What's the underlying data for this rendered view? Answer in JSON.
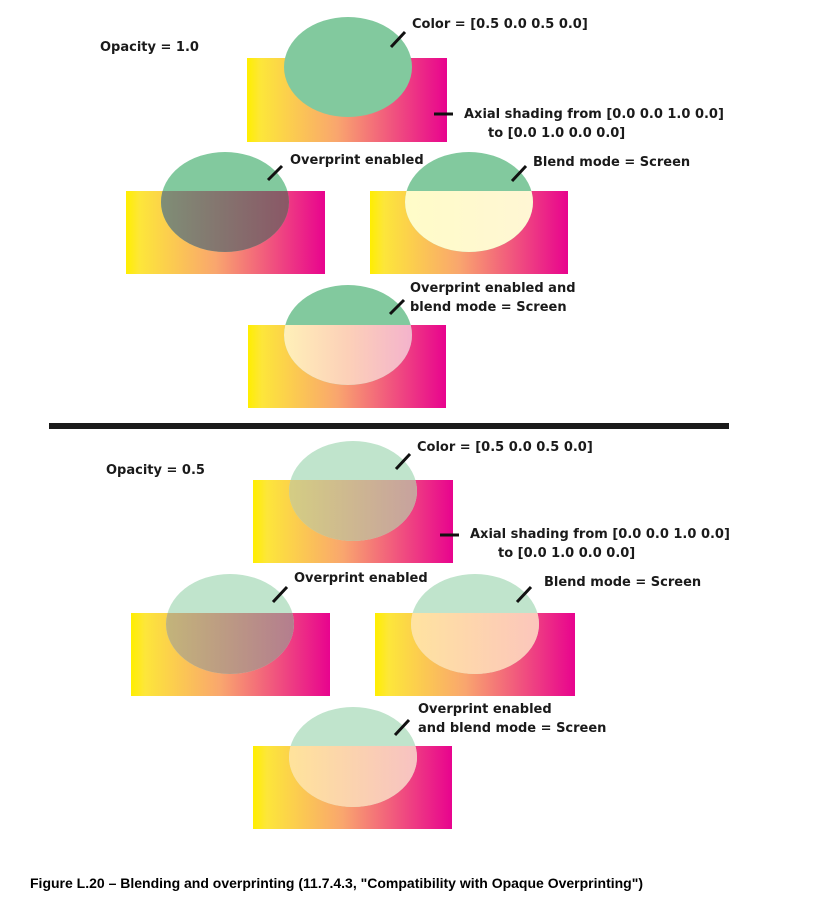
{
  "top_panel": {
    "opacity_label": "Opacity = 1.0",
    "color_label": "Color = [0.5  0.0  0.5  0.0]",
    "axial_line1": "Axial shading from [0.0  0.0  1.0  0.0]",
    "axial_line2": "to [0.0  1.0  0.0  0.0]",
    "overprint_label": "Overprint enabled",
    "blend_label": "Blend mode = Screen",
    "combo_line1": "Overprint enabled and",
    "combo_line2": "blend mode = Screen"
  },
  "bottom_panel": {
    "opacity_label": "Opacity = 0.5",
    "color_label": "Color = [0.5  0.0  0.5  0.0]",
    "axial_line1": "Axial shading from [0.0  0.0  1.0  0.0]",
    "axial_line2": "to [0.0  1.0  0.0  0.0]",
    "overprint_label": "Overprint enabled",
    "blend_label": "Blend mode = Screen",
    "combo_line1": "Overprint enabled",
    "combo_line2": "and blend mode = Screen"
  },
  "caption": "Figure L.20 –  Blending and overprinting (11.7.4.3, \"Compatibility with Opaque Overprinting\")",
  "colors": {
    "shading_start": "#ffee00",
    "shading_mid": "#f9a66e",
    "shading_end": "#e8038e",
    "ellipse_green": "#82c99e",
    "ellipse_green_light": "#c0e4cc",
    "overprint_dark": "#9a6a77",
    "screen_light": "#fff9c8"
  }
}
